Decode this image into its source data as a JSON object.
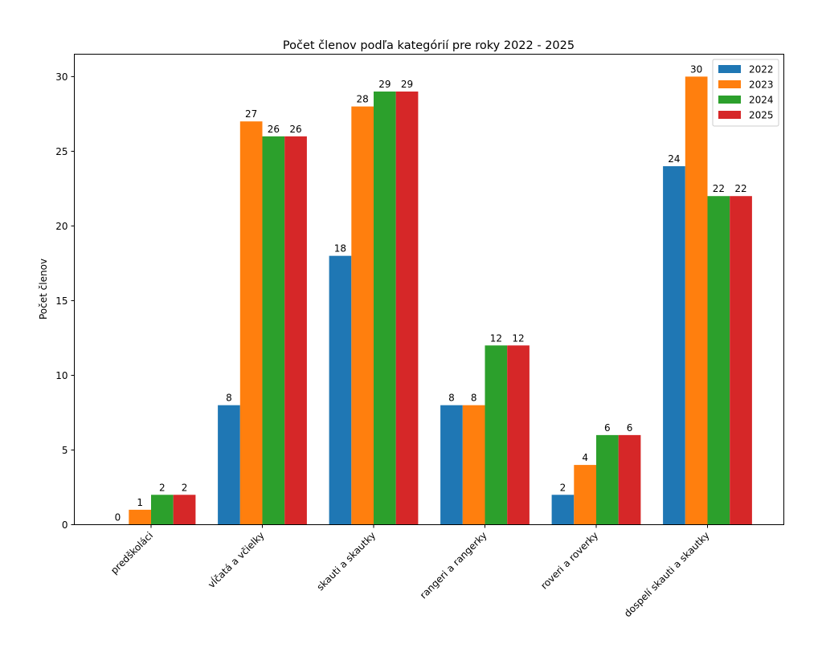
{
  "chart_data": {
    "type": "bar",
    "title": "Počet členov podľa kategórií pre roky 2022 - 2025",
    "xlabel": "",
    "ylabel": "Počet členov",
    "categories": [
      "predškoláci",
      "vĺčatá a včielky",
      "skauti a skautky",
      "rangeri a rangerky",
      "roveri a roverky",
      "dospelí skauti a skautky"
    ],
    "series": [
      {
        "name": "2022",
        "color": "#1f77b4",
        "values": [
          0,
          8,
          18,
          8,
          2,
          24
        ]
      },
      {
        "name": "2023",
        "color": "#ff7f0e",
        "values": [
          1,
          27,
          28,
          8,
          4,
          30
        ]
      },
      {
        "name": "2024",
        "color": "#2ca02c",
        "values": [
          2,
          26,
          29,
          12,
          6,
          22
        ]
      },
      {
        "name": "2025",
        "color": "#d62728",
        "values": [
          2,
          26,
          29,
          12,
          6,
          22
        ]
      }
    ],
    "ylim": [
      0,
      31.5
    ],
    "yticks": [
      0,
      5,
      10,
      15,
      20,
      25,
      30
    ],
    "grid": false,
    "legend_position": "top-right",
    "data_labels": true
  }
}
